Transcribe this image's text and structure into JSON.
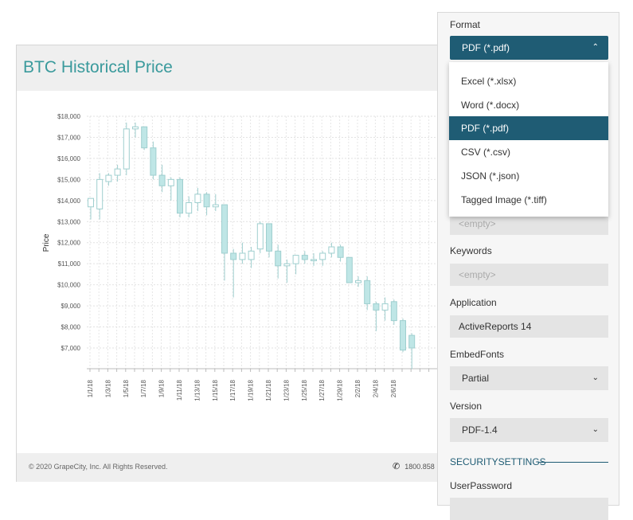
{
  "report": {
    "title": "BTC Historical Price",
    "footer_copyright": "© 2020 GrapeCity, Inc. All Rights Reserved.",
    "footer_phone": "1800.858"
  },
  "icons": {
    "phone": "phone-icon",
    "chevron_up": "chevron-up-icon",
    "chevron_down": "chevron-down-icon"
  },
  "panel": {
    "format_label": "Format",
    "format_value": "PDF (*.pdf)",
    "options": [
      "Excel (*.xlsx)",
      "Word (*.docx)",
      "PDF (*.pdf)",
      "CSV (*.csv)",
      "JSON (*.json)",
      "Tagged Image (*.tiff)"
    ],
    "selected_option": "PDF (*.pdf)",
    "subject_placeholder": "<empty>",
    "keywords_label": "Keywords",
    "keywords_placeholder": "<empty>",
    "application_label": "Application",
    "application_value": "ActiveReports 14",
    "embedfonts_label": "EmbedFonts",
    "embedfonts_value": "Partial",
    "version_label": "Version",
    "version_value": "PDF-1.4",
    "security_title": "SECURITYSETTINGS",
    "userpassword_label": "UserPassword"
  },
  "colors": {
    "accent": "#1f5c74",
    "title": "#3a9a9c",
    "candle_fill": "#bfe6e6",
    "candle_stroke": "#9fcfcf"
  },
  "chart_data": {
    "type": "candlestick",
    "ylabel": "Price",
    "ylim": [
      6000,
      18000
    ],
    "yticks": [
      "$18,000",
      "$17,000",
      "$16,000",
      "$15,000",
      "$14,000",
      "$13,000",
      "$12,000",
      "$11,000",
      "$10,000",
      "$9,000",
      "$8,000",
      "$7,000"
    ],
    "ytick_values": [
      18000,
      17000,
      16000,
      15000,
      14000,
      13000,
      12000,
      11000,
      10000,
      9000,
      8000,
      7000
    ],
    "xtick_labels": [
      "1/1/18",
      "1/3/18",
      "1/5/18",
      "1/7/18",
      "1/9/18",
      "1/11/18",
      "1/13/18",
      "1/15/18",
      "1/17/18",
      "1/19/18",
      "1/21/18",
      "1/23/18",
      "1/25/18",
      "1/27/18",
      "1/29/18",
      "2/2/18",
      "2/4/18",
      "2/6/18"
    ],
    "grid": true,
    "candles": [
      {
        "o": 13700,
        "h": 14100,
        "l": 13100,
        "c": 14100
      },
      {
        "o": 13600,
        "h": 15300,
        "l": 13100,
        "c": 15000
      },
      {
        "o": 14900,
        "h": 15300,
        "l": 14700,
        "c": 15200
      },
      {
        "o": 15200,
        "h": 15700,
        "l": 14900,
        "c": 15500
      },
      {
        "o": 15500,
        "h": 17700,
        "l": 15200,
        "c": 17400
      },
      {
        "o": 17400,
        "h": 17700,
        "l": 17000,
        "c": 17500
      },
      {
        "o": 17500,
        "h": 17500,
        "l": 16400,
        "c": 16500
      },
      {
        "o": 16500,
        "h": 16800,
        "l": 15000,
        "c": 15200
      },
      {
        "o": 15200,
        "h": 15700,
        "l": 14400,
        "c": 14700
      },
      {
        "o": 14700,
        "h": 15100,
        "l": 14000,
        "c": 15000
      },
      {
        "o": 15000,
        "h": 15100,
        "l": 13200,
        "c": 13400
      },
      {
        "o": 13400,
        "h": 14200,
        "l": 13200,
        "c": 13900
      },
      {
        "o": 13900,
        "h": 14600,
        "l": 13500,
        "c": 14300
      },
      {
        "o": 14300,
        "h": 14400,
        "l": 13300,
        "c": 13700
      },
      {
        "o": 13700,
        "h": 14300,
        "l": 13500,
        "c": 13800
      },
      {
        "o": 13800,
        "h": 13800,
        "l": 10200,
        "c": 11500
      },
      {
        "o": 11500,
        "h": 11700,
        "l": 9400,
        "c": 11200
      },
      {
        "o": 11200,
        "h": 12000,
        "l": 11000,
        "c": 11500
      },
      {
        "o": 11200,
        "h": 11800,
        "l": 10800,
        "c": 11600
      },
      {
        "o": 11700,
        "h": 13000,
        "l": 11500,
        "c": 12900
      },
      {
        "o": 12900,
        "h": 12900,
        "l": 11300,
        "c": 11600
      },
      {
        "o": 11600,
        "h": 11900,
        "l": 10300,
        "c": 10900
      },
      {
        "o": 10900,
        "h": 11200,
        "l": 10100,
        "c": 11000
      },
      {
        "o": 11000,
        "h": 11400,
        "l": 10500,
        "c": 11400
      },
      {
        "o": 11400,
        "h": 11600,
        "l": 11000,
        "c": 11200
      },
      {
        "o": 11200,
        "h": 11500,
        "l": 10900,
        "c": 11200
      },
      {
        "o": 11200,
        "h": 11600,
        "l": 10900,
        "c": 11500
      },
      {
        "o": 11500,
        "h": 12000,
        "l": 11300,
        "c": 11800
      },
      {
        "o": 11800,
        "h": 11900,
        "l": 11100,
        "c": 11300
      },
      {
        "o": 11300,
        "h": 11300,
        "l": 10100,
        "c": 10100
      },
      {
        "o": 10100,
        "h": 10400,
        "l": 9900,
        "c": 10200
      },
      {
        "o": 10200,
        "h": 10400,
        "l": 8800,
        "c": 9100
      },
      {
        "o": 9100,
        "h": 9200,
        "l": 7800,
        "c": 8800
      },
      {
        "o": 8800,
        "h": 9400,
        "l": 8300,
        "c": 9100
      },
      {
        "o": 9200,
        "h": 9300,
        "l": 8100,
        "c": 8300
      },
      {
        "o": 8300,
        "h": 8400,
        "l": 6800,
        "c": 6900
      },
      {
        "o": 7600,
        "h": 7700,
        "l": 6000,
        "c": 7000
      }
    ]
  }
}
